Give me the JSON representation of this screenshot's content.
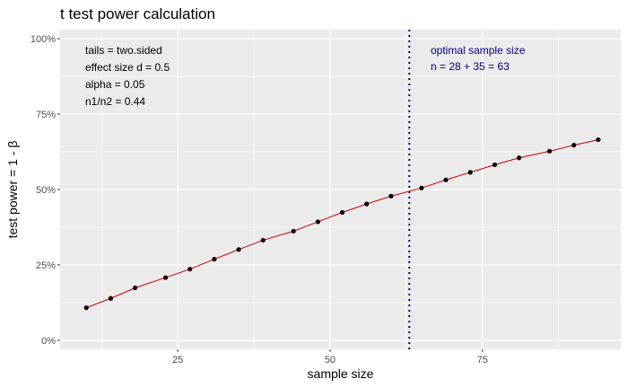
{
  "chart_data": {
    "type": "line",
    "title": "t test power calculation",
    "xlabel": "sample size",
    "ylabel": "test power = 1 - β",
    "xlim": [
      5.7,
      97.7
    ],
    "ylim": [
      -0.03,
      1.03
    ],
    "grid": true,
    "x_ticks": [
      {
        "value": 25,
        "label": "25"
      },
      {
        "value": 50,
        "label": "50"
      },
      {
        "value": 75,
        "label": "75"
      }
    ],
    "x_minor_ticks": [
      12.5,
      37.5,
      62.5,
      87.5
    ],
    "y_ticks": [
      {
        "value": 0,
        "label": "0%"
      },
      {
        "value": 0.25,
        "label": "25%"
      },
      {
        "value": 0.5,
        "label": "50%"
      },
      {
        "value": 0.75,
        "label": "75%"
      },
      {
        "value": 1.0,
        "label": "100%"
      }
    ],
    "y_minor_ticks": [
      0.125,
      0.375,
      0.625,
      0.875
    ],
    "series": [
      {
        "color": "#cc0000",
        "point_color": "#000000",
        "x": [
          10,
          14,
          18,
          23,
          27,
          31,
          35,
          39,
          44,
          48,
          52,
          56,
          60,
          65,
          69,
          73,
          77,
          81,
          86,
          90,
          94
        ],
        "y": [
          0.108,
          0.139,
          0.174,
          0.208,
          0.236,
          0.269,
          0.301,
          0.332,
          0.362,
          0.393,
          0.424,
          0.452,
          0.478,
          0.505,
          0.532,
          0.557,
          0.582,
          0.605,
          0.627,
          0.647,
          0.665
        ]
      }
    ],
    "vline": {
      "x": 63,
      "color": "#00008b",
      "style": "dotted"
    },
    "annotations": {
      "left": {
        "color": "#000000",
        "lines": [
          "tails = two.sided",
          "effect size d = 0.5",
          "alpha = 0.05",
          "n1/n2 =  0.44"
        ]
      },
      "right": {
        "color": "#00008b",
        "lines": [
          "optimal sample size",
          "n = 28 + 35 = 63"
        ]
      }
    }
  }
}
